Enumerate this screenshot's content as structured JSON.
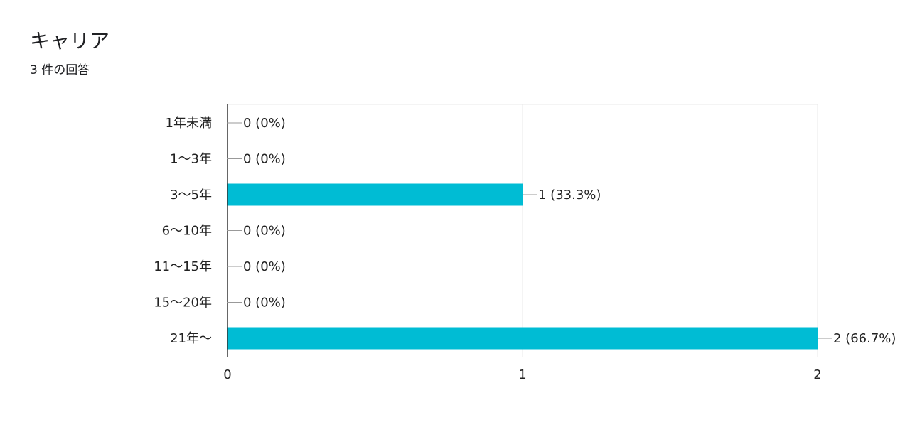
{
  "question": {
    "title": "キャリア",
    "response_count": "3 件の回答"
  },
  "colors": {
    "bar": "#00BCD4",
    "axis": "#333333",
    "grid": "#E8E8E8",
    "leader": "#999999",
    "text": "#222222"
  },
  "chart_data": {
    "type": "bar",
    "orientation": "horizontal",
    "categories": [
      "1年未満",
      "1〜3年",
      "3〜5年",
      "6〜10年",
      "11〜15年",
      "15〜20年",
      "21年〜"
    ],
    "values": [
      0,
      0,
      1,
      0,
      0,
      0,
      2
    ],
    "data_labels": [
      "0 (0%)",
      "0 (0%)",
      "1 (33.3%)",
      "0 (0%)",
      "0 (0%)",
      "0 (0%)",
      "2 (66.7%)"
    ],
    "xlim": [
      0,
      2
    ],
    "x_ticks": [
      0,
      1,
      2
    ],
    "grid": true,
    "legend": "none"
  }
}
